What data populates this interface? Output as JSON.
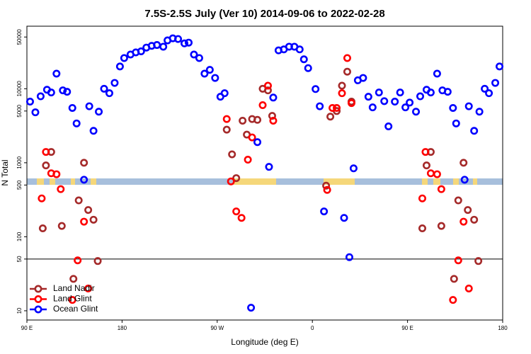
{
  "chart_data": {
    "type": "scatter",
    "title": "7.5S-2.5S July (Ver 10)   2014-09-06 to 2022-02-28",
    "x_label": "Longitude (deg E)",
    "y_label": "N Total",
    "xlim": [
      90,
      540
    ],
    "ylim": [
      7.5,
      70000
    ],
    "log_y": true,
    "legend": "bottom-left",
    "hline": 50,
    "xticks": [
      {
        "value": 90,
        "label": "90 E"
      },
      180,
      {
        "value": 270,
        "label": "90 W"
      },
      {
        "value": 360,
        "label": "0"
      },
      {
        "value": 450,
        "label": "90 E"
      },
      {
        "value": 540,
        "label": "180"
      }
    ],
    "yticks": [
      10,
      50,
      100,
      500,
      1000,
      5000,
      10000,
      50000
    ],
    "series": [
      {
        "name": "Land Nadir",
        "color": "#a52a2a",
        "x": [
          105,
          108,
          113,
          123,
          134,
          139,
          144,
          148,
          153,
          157,
          279,
          284,
          288,
          294,
          298,
          303,
          308,
          313,
          318,
          322,
          373,
          377,
          383,
          388,
          393,
          397,
          464,
          468,
          472,
          482,
          494,
          498,
          503,
          507,
          513,
          517
        ],
        "values": [
          130,
          920,
          1400,
          140,
          27,
          310,
          1000,
          230,
          170,
          47,
          2800,
          1300,
          620,
          3700,
          2400,
          3900,
          3800,
          10000,
          9500,
          4300,
          490,
          4200,
          5000,
          11000,
          17000,
          6700,
          130,
          920,
          1400,
          140,
          27,
          310,
          1000,
          230,
          170,
          47
        ]
      },
      {
        "name": "Land Glint",
        "color": "#ff0000",
        "x": [
          104,
          108,
          113,
          118,
          122,
          133,
          138,
          144,
          148,
          279,
          283,
          288,
          293,
          299,
          303,
          313,
          318,
          323,
          374,
          379,
          383,
          388,
          393,
          397,
          464,
          467,
          472,
          478,
          482,
          493,
          498,
          503,
          508
        ],
        "values": [
          330,
          1400,
          720,
          700,
          440,
          14,
          48,
          160,
          20,
          3900,
          560,
          220,
          180,
          1100,
          2200,
          6000,
          11000,
          3700,
          430,
          5500,
          5500,
          8700,
          26000,
          6400,
          330,
          1400,
          720,
          700,
          440,
          14,
          48,
          160,
          20
        ]
      },
      {
        "name": "Ocean Glint",
        "color": "#0000ff",
        "x": [
          93,
          98,
          103,
          109,
          113,
          118,
          124,
          128,
          133,
          137,
          144,
          149,
          153,
          158,
          163,
          168,
          173,
          178,
          182,
          188,
          193,
          198,
          203,
          208,
          213,
          219,
          223,
          228,
          233,
          239,
          243,
          248,
          253,
          258,
          263,
          268,
          273,
          277,
          302,
          308,
          319,
          323,
          328,
          333,
          338,
          343,
          348,
          352,
          356,
          363,
          367,
          371,
          390,
          395,
          399,
          403,
          408,
          413,
          417,
          423,
          428,
          432,
          438,
          443,
          448,
          452,
          458,
          462,
          468,
          472,
          478,
          483,
          488,
          493,
          496,
          504,
          508,
          513,
          518,
          523,
          527,
          533,
          537
        ],
        "values": [
          6700,
          4800,
          7900,
          9700,
          8900,
          16000,
          9500,
          9100,
          5500,
          3400,
          590,
          5800,
          2700,
          4900,
          10000,
          8700,
          12000,
          20000,
          26000,
          29000,
          31000,
          32000,
          36000,
          38000,
          39000,
          37000,
          45000,
          48000,
          47000,
          41000,
          42000,
          29000,
          26000,
          16000,
          18000,
          14000,
          7800,
          8700,
          11,
          1900,
          880,
          7600,
          33000,
          34000,
          37000,
          37000,
          34000,
          25000,
          19000,
          9900,
          5800,
          220,
          180,
          53,
          840,
          13000,
          14000,
          7800,
          5600,
          8900,
          6800,
          3100,
          6700,
          8900,
          5600,
          6500,
          4900,
          7900,
          9700,
          8900,
          16000,
          9500,
          9100,
          5500,
          3400,
          590,
          5800,
          2700,
          4900,
          10000,
          8700,
          12000,
          20000
        ]
      }
    ]
  }
}
